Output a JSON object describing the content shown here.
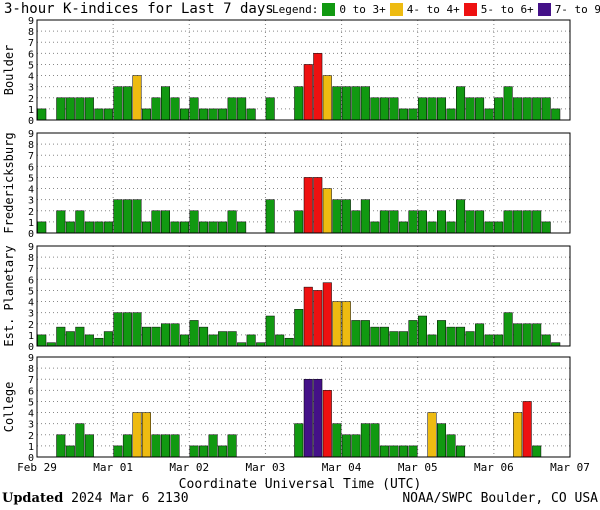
{
  "title": "3-hour K-indices for Last 7 days",
  "legend": {
    "label": "Legend:",
    "items": [
      {
        "label": "0 to 3+",
        "color": "#119911"
      },
      {
        "label": "4- to 4+",
        "color": "#eebb11"
      },
      {
        "label": "5- to 6+",
        "color": "#ee1111"
      },
      {
        "label": "7- to 9",
        "color": "#441188"
      }
    ]
  },
  "footer": {
    "x_axis_title": "Coordinate Universal Time (UTC)",
    "updated_label": "Updated",
    "updated_value": "2024 Mar  6 2130",
    "credit": "NOAA/SWPC Boulder, CO USA"
  },
  "chart_data": [
    {
      "type": "bar",
      "ylabel": "Boulder",
      "ylim": [
        0,
        9
      ],
      "y_ticks": [
        0,
        1,
        2,
        3,
        4,
        5,
        6,
        7,
        8,
        9
      ],
      "x_tick_labels": [
        "Feb 29",
        "Mar 01",
        "Mar 02",
        "Mar 03",
        "Mar 04",
        "Mar 05",
        "Mar 06",
        "Mar 07"
      ],
      "grid": "dotted",
      "values": [
        1,
        0,
        2,
        2,
        2,
        2,
        1,
        1,
        3,
        3,
        4,
        1,
        2,
        3,
        2,
        1,
        2,
        1,
        1,
        1,
        2,
        2,
        1,
        0,
        2,
        0,
        0,
        3,
        5,
        6,
        4,
        3,
        3,
        3,
        3,
        2,
        2,
        2,
        1,
        1,
        2,
        2,
        2,
        1,
        3,
        2,
        2,
        1,
        2,
        3,
        2,
        2,
        2,
        2,
        1,
        0
      ]
    },
    {
      "type": "bar",
      "ylabel": "Fredericksburg",
      "ylim": [
        0,
        9
      ],
      "y_ticks": [
        0,
        1,
        2,
        3,
        4,
        5,
        6,
        7,
        8,
        9
      ],
      "x_tick_labels": [
        "Feb 29",
        "Mar 01",
        "Mar 02",
        "Mar 03",
        "Mar 04",
        "Mar 05",
        "Mar 06",
        "Mar 07"
      ],
      "grid": "dotted",
      "values": [
        1,
        0,
        2,
        1,
        2,
        1,
        1,
        1,
        3,
        3,
        3,
        1,
        2,
        2,
        1,
        1,
        2,
        1,
        1,
        1,
        2,
        1,
        0,
        0,
        3,
        0,
        0,
        2,
        5,
        5,
        4,
        3,
        3,
        2,
        3,
        1,
        2,
        2,
        1,
        2,
        2,
        1,
        2,
        1,
        3,
        2,
        2,
        1,
        1,
        2,
        2,
        2,
        2,
        1,
        0,
        0
      ]
    },
    {
      "type": "bar",
      "ylabel": "Est. Planetary",
      "ylim": [
        0,
        9
      ],
      "y_ticks": [
        0,
        1,
        2,
        3,
        4,
        5,
        6,
        7,
        8,
        9
      ],
      "x_tick_labels": [
        "Feb 29",
        "Mar 01",
        "Mar 02",
        "Mar 03",
        "Mar 04",
        "Mar 05",
        "Mar 06",
        "Mar 07"
      ],
      "grid": "dotted",
      "values": [
        1,
        0.3,
        1.7,
        1.3,
        1.7,
        1,
        0.7,
        1.3,
        3,
        3,
        3,
        1.7,
        1.7,
        2,
        2,
        1,
        2.3,
        1.7,
        1,
        1.3,
        1.3,
        0.3,
        1,
        0.3,
        2.7,
        1,
        0.7,
        3.3,
        5.3,
        5,
        5.7,
        4,
        4,
        2.3,
        2.3,
        1.7,
        1.7,
        1.3,
        1.3,
        2.3,
        2.7,
        1,
        2.3,
        1.7,
        1.7,
        1.3,
        2,
        1,
        1,
        3,
        2,
        2,
        2,
        1,
        0.3,
        0
      ]
    },
    {
      "type": "bar",
      "ylabel": "College",
      "ylim": [
        0,
        9
      ],
      "y_ticks": [
        0,
        1,
        2,
        3,
        4,
        5,
        6,
        7,
        8,
        9
      ],
      "x_tick_labels": [
        "Feb 29",
        "Mar 01",
        "Mar 02",
        "Mar 03",
        "Mar 04",
        "Mar 05",
        "Mar 06",
        "Mar 07"
      ],
      "grid": "dotted",
      "values": [
        0,
        0,
        2,
        1,
        3,
        2,
        0,
        0,
        1,
        2,
        4,
        4,
        2,
        2,
        2,
        0,
        1,
        1,
        2,
        1,
        2,
        0,
        0,
        0,
        0,
        0,
        0,
        3,
        7,
        7,
        6,
        3,
        2,
        2,
        3,
        3,
        1,
        1,
        1,
        1,
        0,
        4,
        3,
        2,
        1,
        0,
        0,
        0,
        0,
        0,
        4,
        5,
        1,
        0,
        0,
        0
      ]
    }
  ]
}
